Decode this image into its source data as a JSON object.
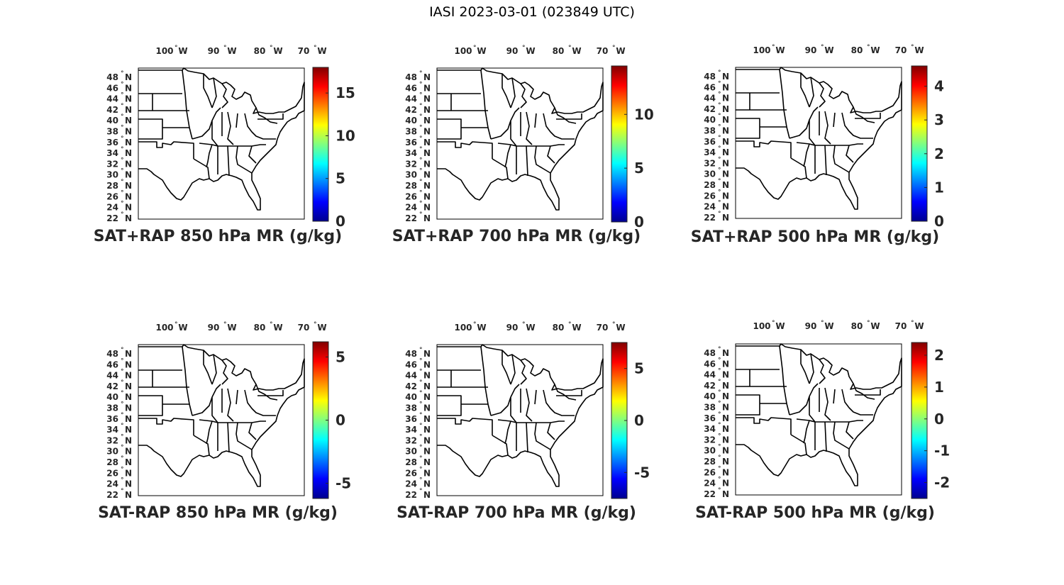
{
  "title": "IASI 2023-03-01 (023849 UTC)",
  "colormap": [
    "#00008f",
    "#0000ff",
    "#0080ff",
    "#00ffff",
    "#80ff80",
    "#ffff00",
    "#ff8000",
    "#ff0000",
    "#800000"
  ],
  "map_icon": "us-states-map",
  "lon_labels": [
    "100",
    "90",
    "80",
    "70"
  ],
  "lon_suffix": "W",
  "lat_labels": [
    "48",
    "46",
    "44",
    "42",
    "40",
    "38",
    "36",
    "34",
    "32",
    "30",
    "28",
    "26",
    "24",
    "22"
  ],
  "lat_suffix": "N",
  "degree_symbol": "°",
  "panels": [
    {
      "title": "SAT+RAP 850 hPa MR (g/kg)",
      "cmin": 0,
      "cmax": 18,
      "ticks": [
        0,
        5,
        10,
        15
      ],
      "tick_labels": [
        "0",
        "5",
        "10",
        "15"
      ]
    },
    {
      "title": "SAT+RAP 700 hPa MR (g/kg)",
      "cmin": 0,
      "cmax": 14.5,
      "ticks": [
        0,
        5,
        10
      ],
      "tick_labels": [
        "0",
        "5",
        "10"
      ]
    },
    {
      "title": "SAT+RAP 500 hPa MR (g/kg)",
      "cmin": 0,
      "cmax": 4.6,
      "ticks": [
        0,
        1,
        2,
        3,
        4
      ],
      "tick_labels": [
        "0",
        "1",
        "2",
        "3",
        "4"
      ]
    },
    {
      "title": "SAT-RAP 850 hPa MR (g/kg)",
      "cmin": -6.2,
      "cmax": 6.2,
      "ticks": [
        -5,
        0,
        5
      ],
      "tick_labels": [
        "-5",
        "0",
        "5"
      ]
    },
    {
      "title": "SAT-RAP 700 hPa MR (g/kg)",
      "cmin": -7.5,
      "cmax": 7.5,
      "ticks": [
        -5,
        0,
        5
      ],
      "tick_labels": [
        "-5",
        "0",
        "5"
      ]
    },
    {
      "title": "SAT-RAP 500 hPa MR (g/kg)",
      "cmin": -2.5,
      "cmax": 2.4,
      "ticks": [
        -2,
        -1,
        0,
        1,
        2
      ],
      "tick_labels": [
        "-2",
        "-1",
        "0",
        "1",
        "2"
      ]
    }
  ]
}
